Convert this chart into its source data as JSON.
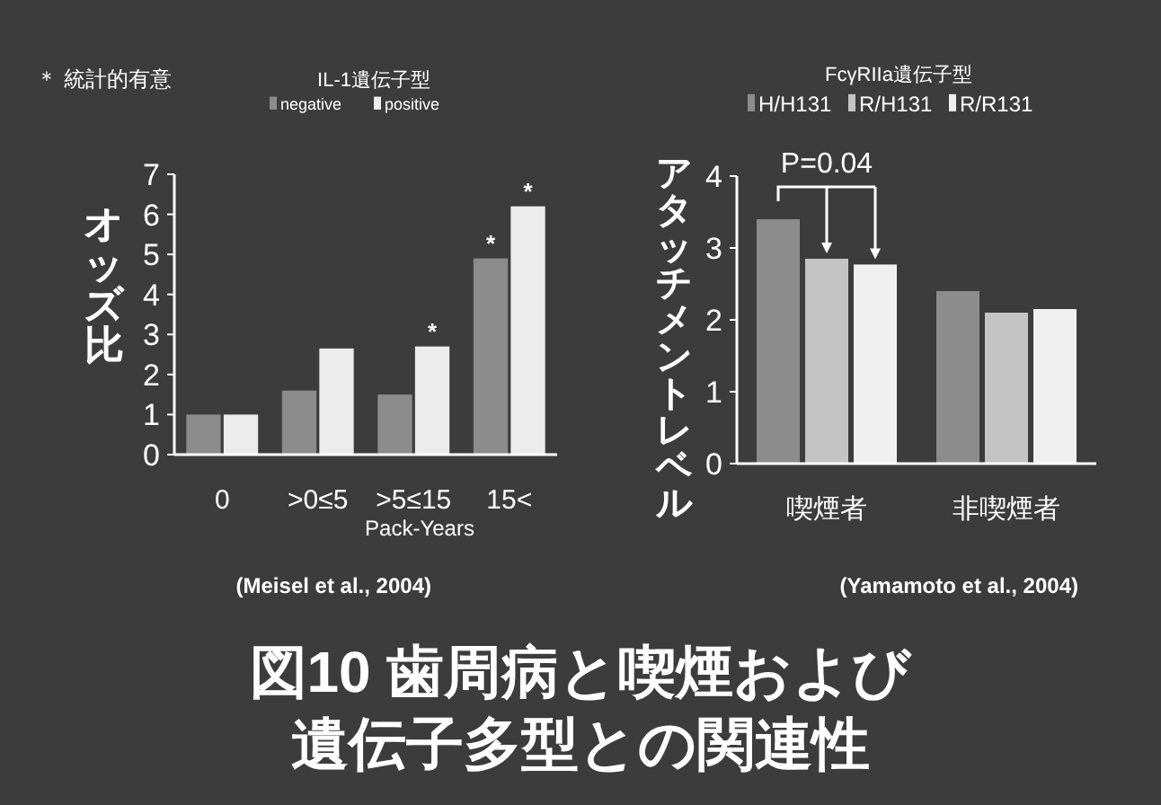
{
  "chart_data": [
    {
      "type": "bar",
      "title": "図10 歯周病と喫煙および遺伝子多型との関連性",
      "ylabel": "オッズ比",
      "xlabel": "Pack-Years",
      "legend_title": "IL-1遺伝子型",
      "categories": [
        "0",
        ">0≤5",
        ">5≤15",
        "15<"
      ],
      "series": [
        {
          "name": "negative",
          "color": "#8c8c8c",
          "values": [
            1.0,
            1.6,
            1.5,
            4.9
          ],
          "value_labels": [
            null,
            null,
            null,
            "*"
          ]
        },
        {
          "name": "positive",
          "color": "#ececec",
          "values": [
            1.0,
            2.65,
            2.7,
            6.2
          ],
          "value_labels": [
            null,
            null,
            "*",
            "*"
          ]
        }
      ],
      "ylim": [
        0,
        7
      ],
      "yticks": [
        0,
        1,
        2,
        3,
        4,
        5,
        6,
        7
      ],
      "grid": false,
      "legend": "top",
      "annotations": [
        "＊ 統計的有意",
        "(Meisel et al., 2004)"
      ]
    },
    {
      "type": "bar",
      "ylabel": "アタッチメントレベル",
      "legend_title": "FcγRIIa遺伝子型",
      "categories": [
        "喫煙者",
        "非喫煙者"
      ],
      "series": [
        {
          "name": "H/H131",
          "color": "#8c8c8c",
          "values": [
            3.4,
            2.4
          ]
        },
        {
          "name": "R/H131",
          "color": "#c4c4c4",
          "values": [
            2.85,
            2.1
          ]
        },
        {
          "name": "R/R131",
          "color": "#f0f0f0",
          "values": [
            2.77,
            2.15
          ]
        }
      ],
      "ylim": [
        0,
        4
      ],
      "yticks": [
        0,
        1,
        2,
        3,
        4
      ],
      "grid": false,
      "legend": "top",
      "annotations": [
        "P=0.04",
        "(Yamamoto et al., 2004)"
      ]
    }
  ]
}
